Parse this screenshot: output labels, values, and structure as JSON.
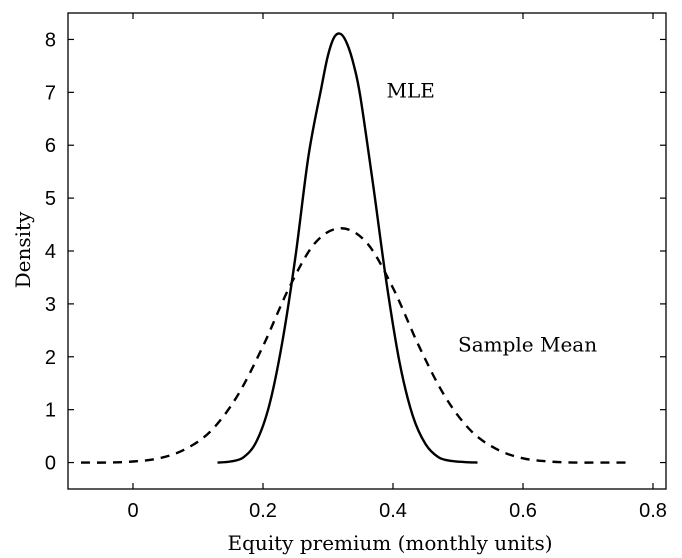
{
  "chart_data": {
    "type": "line",
    "title": "",
    "xlabel": "Equity premium (monthly units)",
    "ylabel": "Density",
    "xlim": [
      -0.1,
      0.82
    ],
    "ylim": [
      -0.5,
      8.5
    ],
    "xticks": [
      0,
      0.2,
      0.4,
      0.6,
      0.8
    ],
    "xtick_labels": [
      "0",
      "0.2",
      "0.4",
      "0.6",
      "0.8"
    ],
    "yticks": [
      0,
      1,
      2,
      3,
      4,
      5,
      6,
      7,
      8
    ],
    "ytick_labels": [
      "0",
      "1",
      "2",
      "3",
      "4",
      "5",
      "6",
      "7",
      "8"
    ],
    "grid": false,
    "legend": "none",
    "series": [
      {
        "name": "MLE",
        "style": "solid",
        "color": "#000000",
        "x": [
          0.13,
          0.15,
          0.17,
          0.19,
          0.21,
          0.23,
          0.25,
          0.27,
          0.29,
          0.3,
          0.31,
          0.32,
          0.33,
          0.34,
          0.35,
          0.37,
          0.39,
          0.41,
          0.43,
          0.45,
          0.47,
          0.49,
          0.51,
          0.53
        ],
        "y": [
          0.0,
          0.02,
          0.1,
          0.4,
          1.1,
          2.3,
          3.9,
          5.8,
          7.1,
          7.7,
          8.05,
          8.1,
          7.9,
          7.5,
          6.9,
          5.2,
          3.4,
          1.9,
          0.9,
          0.35,
          0.1,
          0.03,
          0.01,
          0.0
        ]
      },
      {
        "name": "Sample Mean",
        "style": "dashed",
        "color": "#000000",
        "x": [
          -0.08,
          -0.04,
          0.0,
          0.04,
          0.08,
          0.12,
          0.16,
          0.2,
          0.24,
          0.28,
          0.32,
          0.36,
          0.4,
          0.44,
          0.48,
          0.52,
          0.56,
          0.6,
          0.64,
          0.68,
          0.72,
          0.76
        ],
        "y": [
          0.0,
          0.0,
          0.02,
          0.08,
          0.25,
          0.6,
          1.25,
          2.2,
          3.3,
          4.15,
          4.43,
          4.15,
          3.3,
          2.2,
          1.25,
          0.6,
          0.25,
          0.08,
          0.02,
          0.0,
          0.0,
          0.0
        ]
      }
    ],
    "annotations": [
      {
        "text": "MLE",
        "x": 0.39,
        "y": 6.9
      },
      {
        "text": "Sample Mean",
        "x": 0.5,
        "y": 2.1
      }
    ]
  }
}
